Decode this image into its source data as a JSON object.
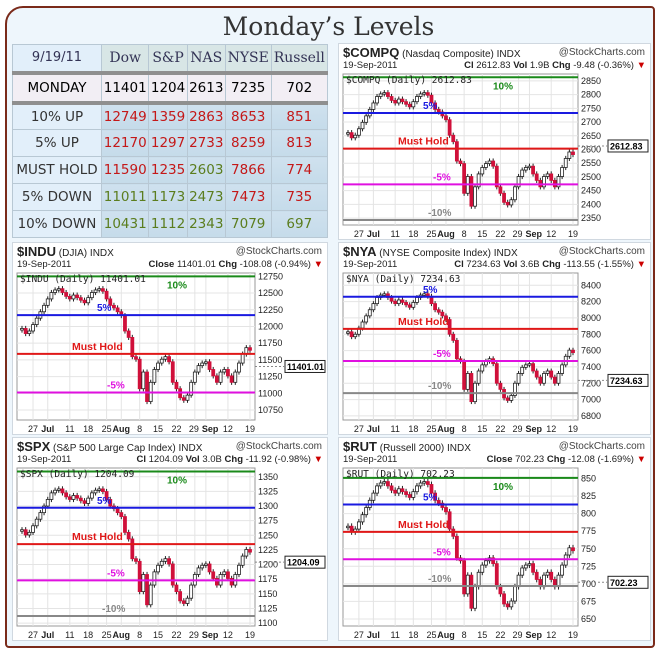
{
  "title": "Monday’s Levels",
  "table": {
    "header": [
      "9/19/11",
      "Dow",
      "S&P",
      "NAS",
      "NYSE",
      "Russell"
    ],
    "monday": {
      "label": "MONDAY",
      "values": [
        "11401",
        "1204",
        "2613",
        "7235",
        "702"
      ]
    },
    "rows": [
      {
        "label": "10% UP",
        "values": [
          "12749",
          "1359",
          "2863",
          "8653",
          "851"
        ],
        "colors": [
          "red",
          "red",
          "red",
          "red",
          "red"
        ]
      },
      {
        "label": "5% UP",
        "values": [
          "12170",
          "1297",
          "2733",
          "8259",
          "813"
        ],
        "colors": [
          "red",
          "red",
          "red",
          "red",
          "red"
        ]
      },
      {
        "label": "MUST HOLD",
        "values": [
          "11590",
          "1235",
          "2603",
          "7866",
          "774"
        ],
        "colors": [
          "red",
          "red",
          "grn",
          "red",
          "red"
        ]
      },
      {
        "label": "5% DOWN",
        "values": [
          "11011",
          "1173",
          "2473",
          "7473",
          "735"
        ],
        "colors": [
          "grn",
          "grn",
          "grn",
          "red",
          "red"
        ]
      },
      {
        "label": "10% DOWN",
        "values": [
          "10431",
          "1112",
          "2343",
          "7079",
          "697"
        ],
        "colors": [
          "grn",
          "grn",
          "grn",
          "grn",
          "grn"
        ]
      }
    ]
  },
  "colors": {
    "up10": "#1a8a1a",
    "up5": "#1a1ae0",
    "must": "#e01818",
    "down5": "#e010e0",
    "down10": "#888888",
    "candle_down": "#d0103a"
  },
  "level_labels": [
    "10%",
    "5%",
    "Must Hold",
    "-5%",
    "-10%"
  ],
  "x_labels": [
    {
      "t": "27",
      "i": 3
    },
    {
      "t": "Jul",
      "i": 7,
      "b": true
    },
    {
      "t": "11",
      "i": 13
    },
    {
      "t": "18",
      "i": 18
    },
    {
      "t": "25",
      "i": 23
    },
    {
      "t": "Aug",
      "i": 27,
      "b": true
    },
    {
      "t": "8",
      "i": 32
    },
    {
      "t": "15",
      "i": 37
    },
    {
      "t": "22",
      "i": 42
    },
    {
      "t": "29",
      "i": 47
    },
    {
      "t": "Sep",
      "i": 50,
      "b": true
    },
    {
      "t": "12",
      "i": 56
    },
    {
      "t": "19",
      "i": 62
    }
  ],
  "shape": [
    0.62,
    0.58,
    0.6,
    0.65,
    0.7,
    0.75,
    0.8,
    0.85,
    0.9,
    0.92,
    0.93,
    0.9,
    0.87,
    0.85,
    0.88,
    0.86,
    0.84,
    0.82,
    0.86,
    0.9,
    0.92,
    0.93,
    0.91,
    0.85,
    0.8,
    0.78,
    0.75,
    0.72,
    0.6,
    0.55,
    0.4,
    0.38,
    0.15,
    0.28,
    0.05,
    0.2,
    0.3,
    0.35,
    0.38,
    0.4,
    0.36,
    0.2,
    0.15,
    0.08,
    0.06,
    0.1,
    0.2,
    0.28,
    0.33,
    0.35,
    0.36,
    0.3,
    0.25,
    0.2,
    0.28,
    0.3,
    0.25,
    0.2,
    0.28,
    0.35,
    0.42,
    0.47,
    0.45
  ],
  "charts": {
    "compq": {
      "symbol": "$COMPQ",
      "name": "(Nasdaq Composite)",
      "exch": "INDX",
      "source": "@StockCharts.com",
      "date": "19-Sep-2011",
      "close_label": "Cl",
      "close": "2612.83",
      "vol_label": "Vol",
      "vol": "1.9B",
      "chg_label": "Chg",
      "chg": "-9.48 (-0.36%)",
      "legend": "$COMPQ (Daily) 2612.83",
      "ylim": [
        2325,
        2875
      ],
      "ticks": [
        2350,
        2400,
        2450,
        2500,
        2550,
        2600,
        2650,
        2700,
        2750,
        2800,
        2850
      ],
      "levels": [
        2863,
        2733,
        2603,
        2473,
        2343
      ],
      "low": 2370,
      "high": 2840,
      "last": 2612.83
    },
    "indu": {
      "symbol": "$INDU",
      "name": "(DJIA)",
      "exch": "INDX",
      "source": "@StockCharts.com",
      "date": "19-Sep-2011",
      "close_label": "Close",
      "close": "11401.01",
      "chg_label": "Chg",
      "chg": "-108.08 (-0.94%)",
      "legend": "$INDU (Daily) 11401.01",
      "ylim": [
        10600,
        12800
      ],
      "ticks": [
        10750,
        11000,
        11250,
        11500,
        11750,
        12000,
        12250,
        12500,
        12750
      ],
      "levels": [
        12749,
        12170,
        11590,
        11011,
        10431
      ],
      "low": 10780,
      "high": 12700,
      "last": 11401.01
    },
    "nya": {
      "symbol": "$NYA",
      "name": "(NYSE Composite Index)",
      "exch": "INDX",
      "source": "@StockCharts.com",
      "date": "19-Sep-2011",
      "close_label": "Cl",
      "close": "7234.63",
      "vol_label": "Vol",
      "vol": "3.6B",
      "chg_label": "Chg",
      "chg": "-113.55 (-1.55%)",
      "legend": "$NYA (Daily) 7234.63",
      "ylim": [
        6750,
        8550
      ],
      "ticks": [
        6800,
        7000,
        7200,
        7400,
        7600,
        7800,
        8000,
        8200,
        8400
      ],
      "levels": [
        8653,
        8259,
        7866,
        7473,
        7079
      ],
      "low": 6900,
      "high": 8400,
      "last": 7234.63
    },
    "spx": {
      "symbol": "$SPX",
      "name": "(S&P 500 Large Cap Index)",
      "exch": "INDX",
      "source": "@StockCharts.com",
      "date": "19-Sep-2011",
      "close_label": "Cl",
      "close": "1204.09",
      "vol_label": "Vol",
      "vol": "3.0B",
      "chg_label": "Chg",
      "chg": "-11.92 (-0.98%)",
      "legend": "$SPX (Daily) 1204.09",
      "ylim": [
        1095,
        1365
      ],
      "ticks": [
        1100,
        1125,
        1150,
        1175,
        1200,
        1225,
        1250,
        1275,
        1300,
        1325,
        1350
      ],
      "levels": [
        1359,
        1297,
        1235,
        1173,
        1112
      ],
      "low": 1120,
      "high": 1345,
      "last": 1204.09
    },
    "rut": {
      "symbol": "$RUT",
      "name": "(Russell 2000)",
      "exch": "INDX",
      "source": "@StockCharts.com",
      "date": "19-Sep-2011",
      "close_label": "Close",
      "close": "702.23",
      "chg_label": "Chg",
      "chg": "-12.08 (-1.69%)",
      "legend": "$RUT (Daily) 702.23",
      "ylim": [
        640,
        865
      ],
      "ticks": [
        650,
        675,
        700,
        725,
        750,
        775,
        800,
        825,
        850
      ],
      "levels": [
        851,
        813,
        774,
        735,
        697
      ],
      "low": 655,
      "high": 860,
      "last": 702.23
    }
  }
}
